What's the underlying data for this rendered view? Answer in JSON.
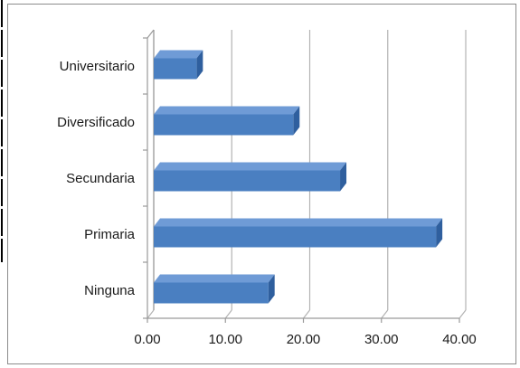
{
  "chart_data": {
    "type": "bar",
    "orientation": "horizontal",
    "style": "3d",
    "categories": [
      "Ninguna",
      "Primaria",
      "Secundaria",
      "Diversificado",
      "Universitario"
    ],
    "values": [
      15.5,
      37.0,
      24.7,
      18.7,
      6.3
    ],
    "xlim": [
      0,
      40
    ],
    "xticks": [
      "0.00",
      "10.00",
      "20.00",
      "30.00",
      "40.00"
    ],
    "title": "",
    "xlabel": "",
    "ylabel": "",
    "grid": true,
    "legend": "none",
    "colors": {
      "bar_front": "#4a7fc1",
      "bar_top": "#6f9bd6",
      "bar_side": "#2f5f9e",
      "gridline": "#b3b3b3",
      "frame_left_edge": "#000000",
      "frame_border": "#8c8c8c"
    }
  }
}
